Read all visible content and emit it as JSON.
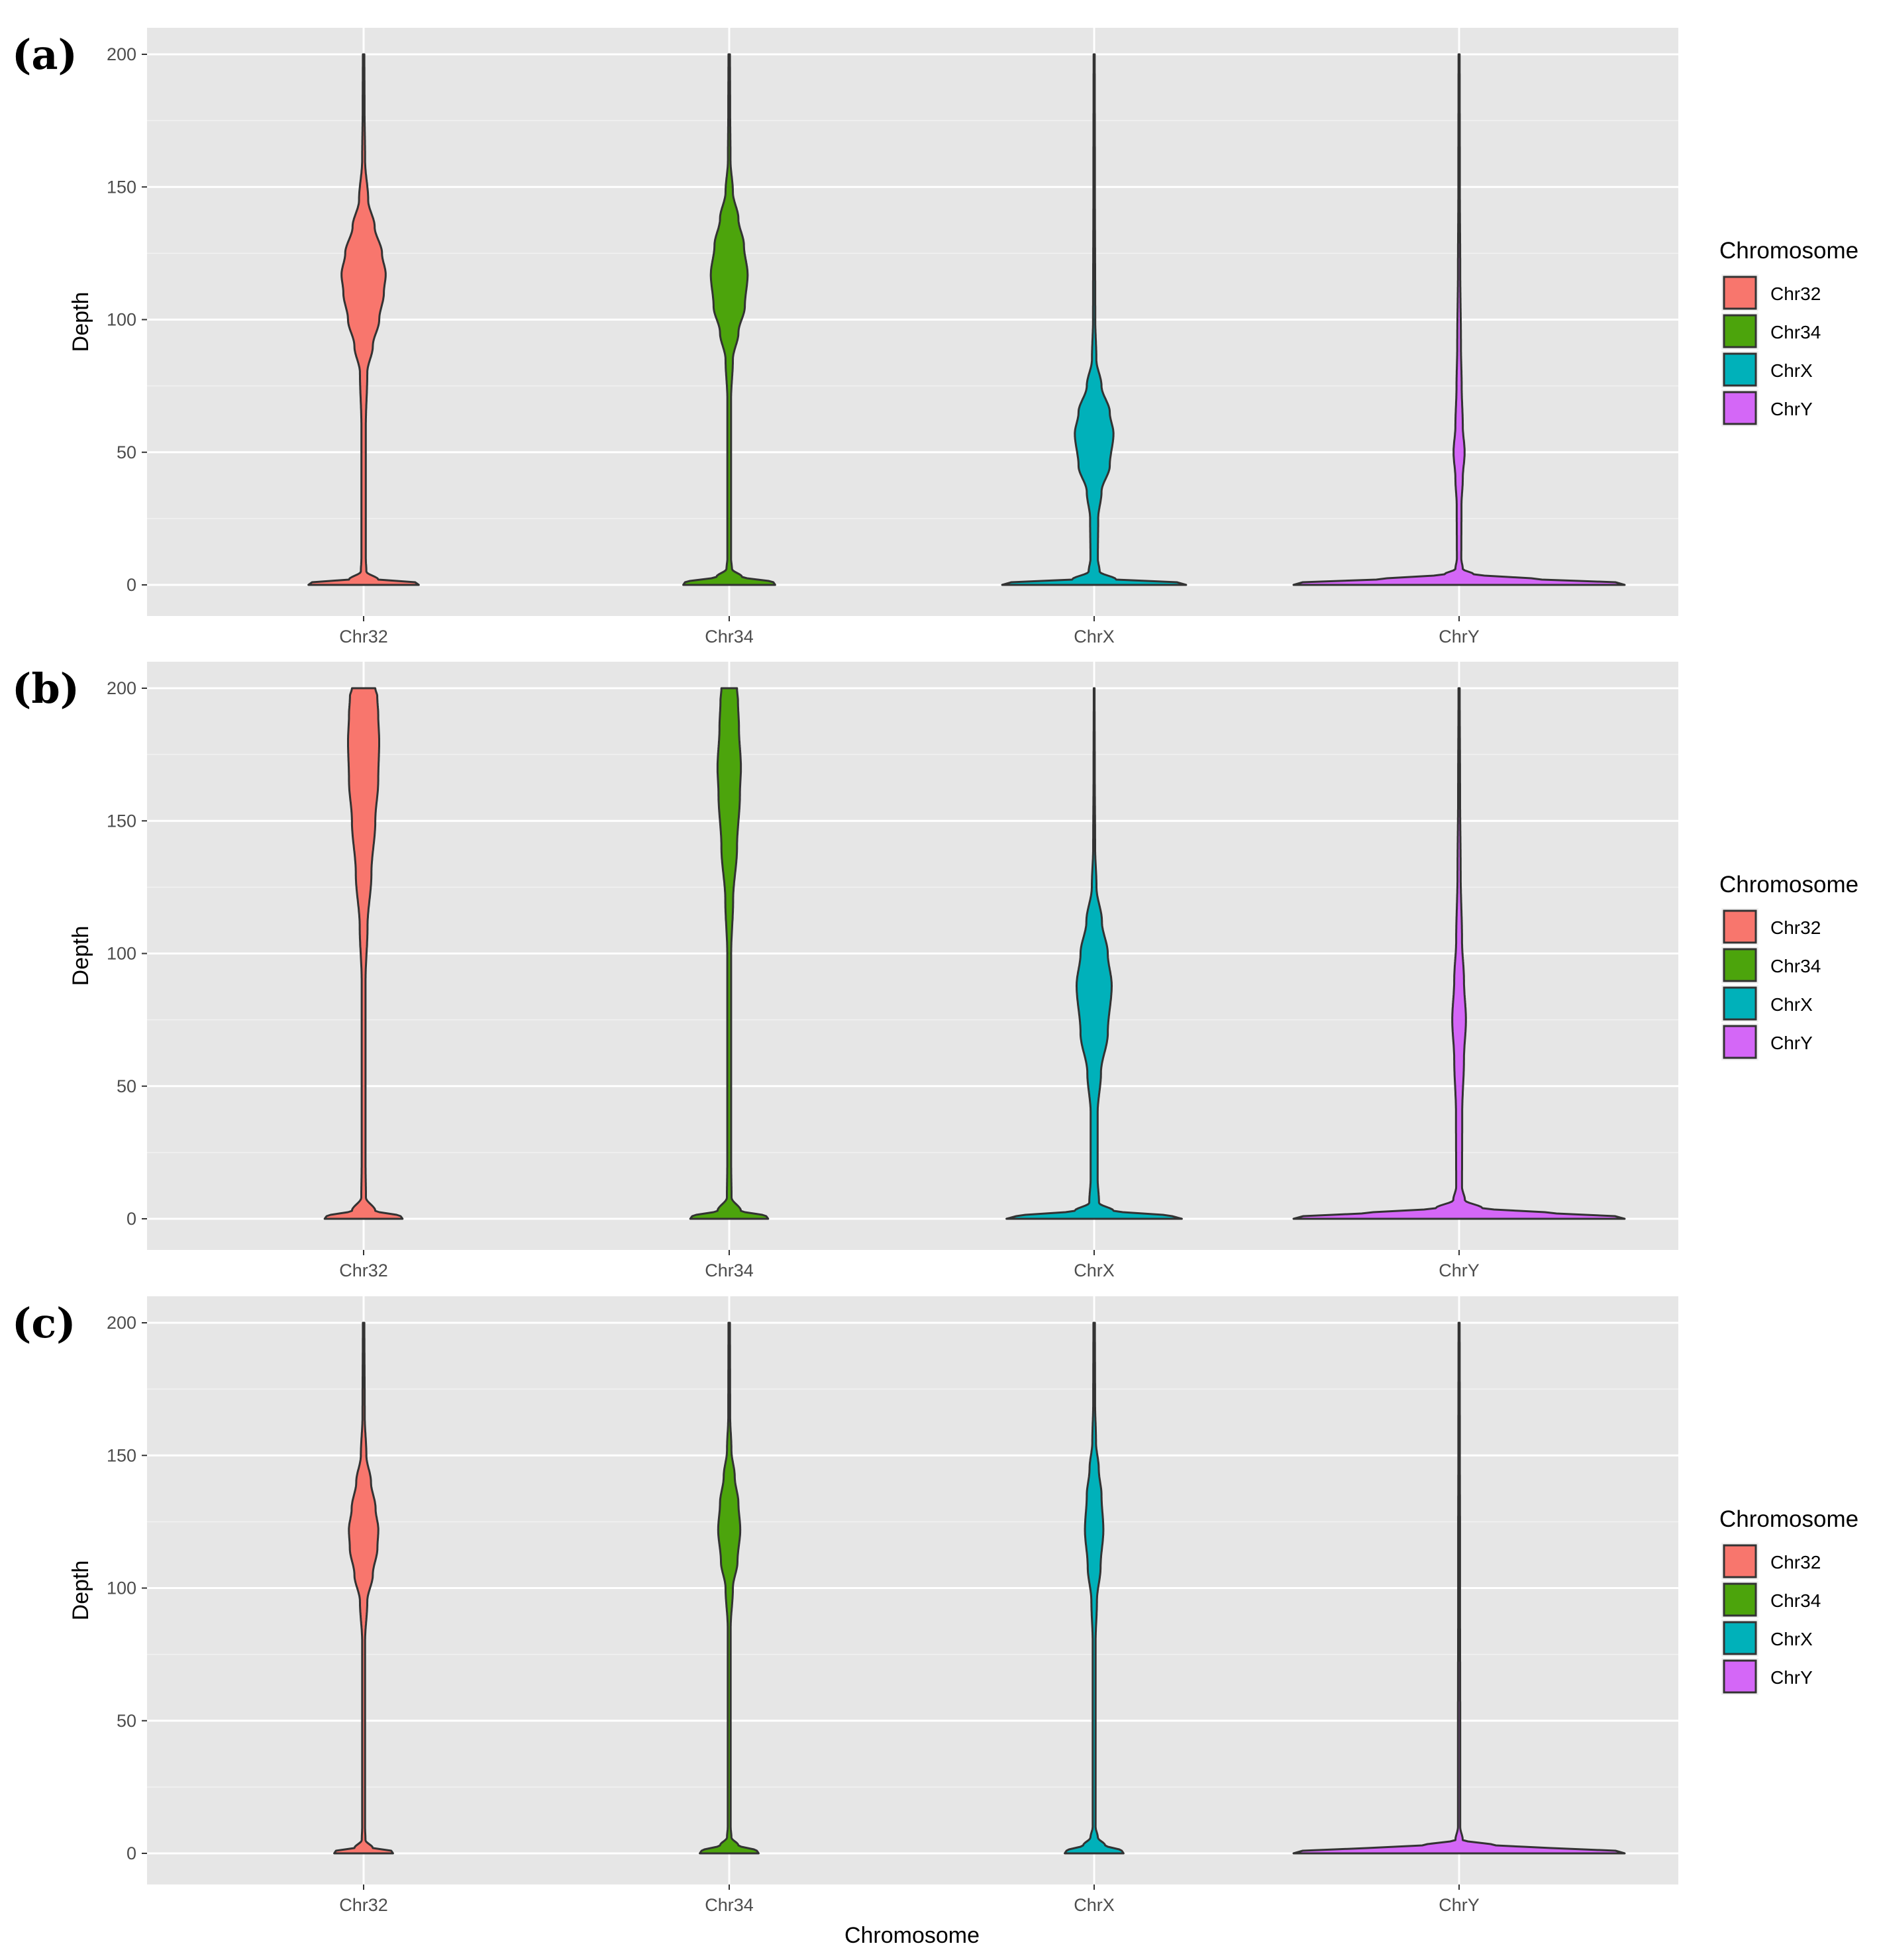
{
  "figure": {
    "xlabel": "Chromosome",
    "ylabel": "Depth",
    "legend_title": "Chromosome"
  },
  "colors": {
    "Chr32": "#f8766d",
    "Chr34": "#4ca40c",
    "ChrX": "#00b1ba",
    "ChrY": "#d467f7",
    "panel_bg": "#e6e6e6",
    "outline": "#333333"
  },
  "chart_data": [
    {
      "type": "violin",
      "panel": "(a)",
      "title": "",
      "xlabel": "",
      "ylabel": "Depth",
      "ylim": [
        0,
        200
      ],
      "yticks": [
        0,
        50,
        100,
        150,
        200
      ],
      "categories": [
        "Chr32",
        "Chr34",
        "ChrX",
        "ChrY"
      ],
      "legend": {
        "title": "Chromosome",
        "entries": [
          "Chr32",
          "Chr34",
          "ChrX",
          "ChrY"
        ],
        "position": "right"
      },
      "series": [
        {
          "name": "Chr32",
          "mode": 117,
          "max": 200,
          "density": [
            [
              0,
              0.3
            ],
            [
              1,
              0.28
            ],
            [
              2,
              0.08
            ],
            [
              5,
              0.015
            ],
            [
              10,
              0.012
            ],
            [
              60,
              0.012
            ],
            [
              80,
              0.02
            ],
            [
              90,
              0.05
            ],
            [
              100,
              0.085
            ],
            [
              110,
              0.11
            ],
            [
              117,
              0.12
            ],
            [
              125,
              0.1
            ],
            [
              135,
              0.06
            ],
            [
              145,
              0.025
            ],
            [
              160,
              0.008
            ],
            [
              180,
              0.005
            ],
            [
              200,
              0.004
            ]
          ]
        },
        {
          "name": "Chr34",
          "mode": 117,
          "max": 200,
          "density": [
            [
              0,
              0.25
            ],
            [
              1,
              0.24
            ],
            [
              3,
              0.07
            ],
            [
              6,
              0.015
            ],
            [
              10,
              0.01
            ],
            [
              70,
              0.01
            ],
            [
              85,
              0.02
            ],
            [
              95,
              0.05
            ],
            [
              105,
              0.085
            ],
            [
              117,
              0.1
            ],
            [
              128,
              0.08
            ],
            [
              138,
              0.05
            ],
            [
              148,
              0.02
            ],
            [
              160,
              0.007
            ],
            [
              180,
              0.005
            ],
            [
              200,
              0.004
            ]
          ]
        },
        {
          "name": "ChrX",
          "mode": 57,
          "max": 200,
          "density": [
            [
              0,
              0.5
            ],
            [
              1,
              0.45
            ],
            [
              2,
              0.12
            ],
            [
              5,
              0.03
            ],
            [
              10,
              0.02
            ],
            [
              25,
              0.022
            ],
            [
              35,
              0.04
            ],
            [
              45,
              0.085
            ],
            [
              57,
              0.105
            ],
            [
              65,
              0.085
            ],
            [
              75,
              0.04
            ],
            [
              85,
              0.012
            ],
            [
              100,
              0.006
            ],
            [
              150,
              0.004
            ],
            [
              200,
              0.003
            ]
          ]
        },
        {
          "name": "ChrY",
          "mode": 50,
          "max": 200,
          "density": [
            [
              0,
              0.9
            ],
            [
              1,
              0.85
            ],
            [
              2,
              0.45
            ],
            [
              4,
              0.08
            ],
            [
              6,
              0.02
            ],
            [
              10,
              0.012
            ],
            [
              30,
              0.013
            ],
            [
              40,
              0.02
            ],
            [
              50,
              0.03
            ],
            [
              60,
              0.02
            ],
            [
              75,
              0.014
            ],
            [
              90,
              0.01
            ],
            [
              120,
              0.006
            ],
            [
              150,
              0.004
            ],
            [
              200,
              0.003
            ]
          ]
        }
      ]
    },
    {
      "type": "violin",
      "panel": "(b)",
      "title": "",
      "xlabel": "",
      "ylabel": "Depth",
      "ylim": [
        0,
        200
      ],
      "yticks": [
        0,
        50,
        100,
        150,
        200
      ],
      "categories": [
        "Chr32",
        "Chr34",
        "ChrX",
        "ChrY"
      ],
      "legend": {
        "title": "Chromosome",
        "entries": [
          "Chr32",
          "Chr34",
          "ChrX",
          "ChrY"
        ],
        "position": "right"
      },
      "series": [
        {
          "name": "Chr32",
          "mode": 180,
          "max": 200,
          "density": [
            [
              0,
              0.2
            ],
            [
              1,
              0.19
            ],
            [
              3,
              0.06
            ],
            [
              8,
              0.012
            ],
            [
              20,
              0.01
            ],
            [
              90,
              0.01
            ],
            [
              110,
              0.02
            ],
            [
              130,
              0.04
            ],
            [
              150,
              0.06
            ],
            [
              165,
              0.075
            ],
            [
              180,
              0.08
            ],
            [
              190,
              0.075
            ],
            [
              197,
              0.07
            ],
            [
              200,
              0.06
            ]
          ]
        },
        {
          "name": "Chr34",
          "mode": 170,
          "max": 200,
          "density": [
            [
              0,
              0.2
            ],
            [
              1,
              0.19
            ],
            [
              3,
              0.06
            ],
            [
              8,
              0.012
            ],
            [
              20,
              0.01
            ],
            [
              100,
              0.01
            ],
            [
              120,
              0.02
            ],
            [
              140,
              0.04
            ],
            [
              160,
              0.055
            ],
            [
              170,
              0.06
            ],
            [
              185,
              0.05
            ],
            [
              195,
              0.045
            ],
            [
              200,
              0.04
            ]
          ]
        },
        {
          "name": "ChrX",
          "mode": 88,
          "max": 200,
          "density": [
            [
              0,
              0.45
            ],
            [
              1,
              0.4
            ],
            [
              3,
              0.1
            ],
            [
              6,
              0.025
            ],
            [
              15,
              0.018
            ],
            [
              40,
              0.018
            ],
            [
              55,
              0.035
            ],
            [
              70,
              0.07
            ],
            [
              88,
              0.09
            ],
            [
              100,
              0.07
            ],
            [
              112,
              0.04
            ],
            [
              125,
              0.012
            ],
            [
              140,
              0.005
            ],
            [
              170,
              0.003
            ],
            [
              200,
              0.002
            ]
          ]
        },
        {
          "name": "ChrY",
          "mode": 75,
          "max": 200,
          "density": [
            [
              0,
              0.85
            ],
            [
              1,
              0.8
            ],
            [
              2,
              0.5
            ],
            [
              4,
              0.12
            ],
            [
              7,
              0.03
            ],
            [
              12,
              0.015
            ],
            [
              40,
              0.016
            ],
            [
              60,
              0.025
            ],
            [
              75,
              0.035
            ],
            [
              90,
              0.025
            ],
            [
              105,
              0.015
            ],
            [
              130,
              0.008
            ],
            [
              160,
              0.005
            ],
            [
              200,
              0.003
            ]
          ]
        }
      ]
    },
    {
      "type": "violin",
      "panel": "(c)",
      "title": "",
      "xlabel": "Chromosome",
      "ylabel": "Depth",
      "ylim": [
        0,
        200
      ],
      "yticks": [
        0,
        50,
        100,
        150,
        200
      ],
      "categories": [
        "Chr32",
        "Chr34",
        "ChrX",
        "ChrY"
      ],
      "legend": {
        "title": "Chromosome",
        "entries": [
          "Chr32",
          "Chr34",
          "ChrX",
          "ChrY"
        ],
        "position": "right"
      },
      "series": [
        {
          "name": "Chr32",
          "mode": 122,
          "max": 200,
          "density": [
            [
              0,
              0.16
            ],
            [
              1,
              0.15
            ],
            [
              2,
              0.05
            ],
            [
              5,
              0.01
            ],
            [
              10,
              0.008
            ],
            [
              80,
              0.008
            ],
            [
              95,
              0.02
            ],
            [
              105,
              0.05
            ],
            [
              115,
              0.075
            ],
            [
              122,
              0.08
            ],
            [
              130,
              0.065
            ],
            [
              140,
              0.04
            ],
            [
              150,
              0.015
            ],
            [
              165,
              0.006
            ],
            [
              200,
              0.004
            ]
          ]
        },
        {
          "name": "Chr34",
          "mode": 122,
          "max": 200,
          "density": [
            [
              0,
              0.16
            ],
            [
              1,
              0.15
            ],
            [
              3,
              0.05
            ],
            [
              6,
              0.012
            ],
            [
              10,
              0.008
            ],
            [
              85,
              0.008
            ],
            [
              100,
              0.02
            ],
            [
              110,
              0.045
            ],
            [
              122,
              0.06
            ],
            [
              132,
              0.05
            ],
            [
              142,
              0.03
            ],
            [
              152,
              0.012
            ],
            [
              165,
              0.005
            ],
            [
              200,
              0.004
            ]
          ]
        },
        {
          "name": "ChrX",
          "mode": 122,
          "max": 200,
          "density": [
            [
              0,
              0.16
            ],
            [
              1,
              0.15
            ],
            [
              3,
              0.06
            ],
            [
              6,
              0.02
            ],
            [
              10,
              0.008
            ],
            [
              80,
              0.008
            ],
            [
              95,
              0.015
            ],
            [
              108,
              0.035
            ],
            [
              122,
              0.05
            ],
            [
              135,
              0.04
            ],
            [
              145,
              0.025
            ],
            [
              155,
              0.01
            ],
            [
              170,
              0.005
            ],
            [
              200,
              0.004
            ]
          ]
        },
        {
          "name": "ChrY",
          "mode": 1,
          "max": 200,
          "density": [
            [
              0,
              0.9
            ],
            [
              1,
              0.85
            ],
            [
              2,
              0.5
            ],
            [
              3,
              0.2
            ],
            [
              5,
              0.02
            ],
            [
              10,
              0.006
            ],
            [
              50,
              0.006
            ],
            [
              100,
              0.005
            ],
            [
              120,
              0.005
            ],
            [
              150,
              0.004
            ],
            [
              200,
              0.003
            ]
          ]
        }
      ]
    }
  ]
}
